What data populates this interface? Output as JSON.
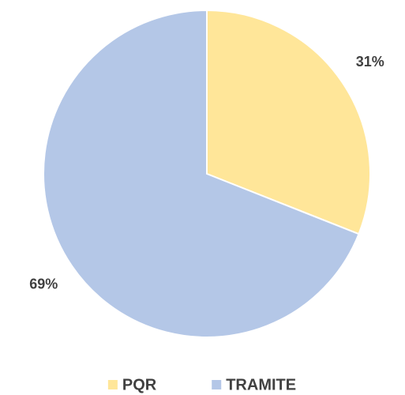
{
  "chart_data": {
    "type": "pie",
    "categories": [
      "PQR",
      "TRAMITE"
    ],
    "values": [
      31,
      69
    ],
    "value_labels": [
      "31%",
      "69%"
    ],
    "colors": [
      "#FFE699",
      "#B4C7E7"
    ],
    "legend": "bottom"
  }
}
